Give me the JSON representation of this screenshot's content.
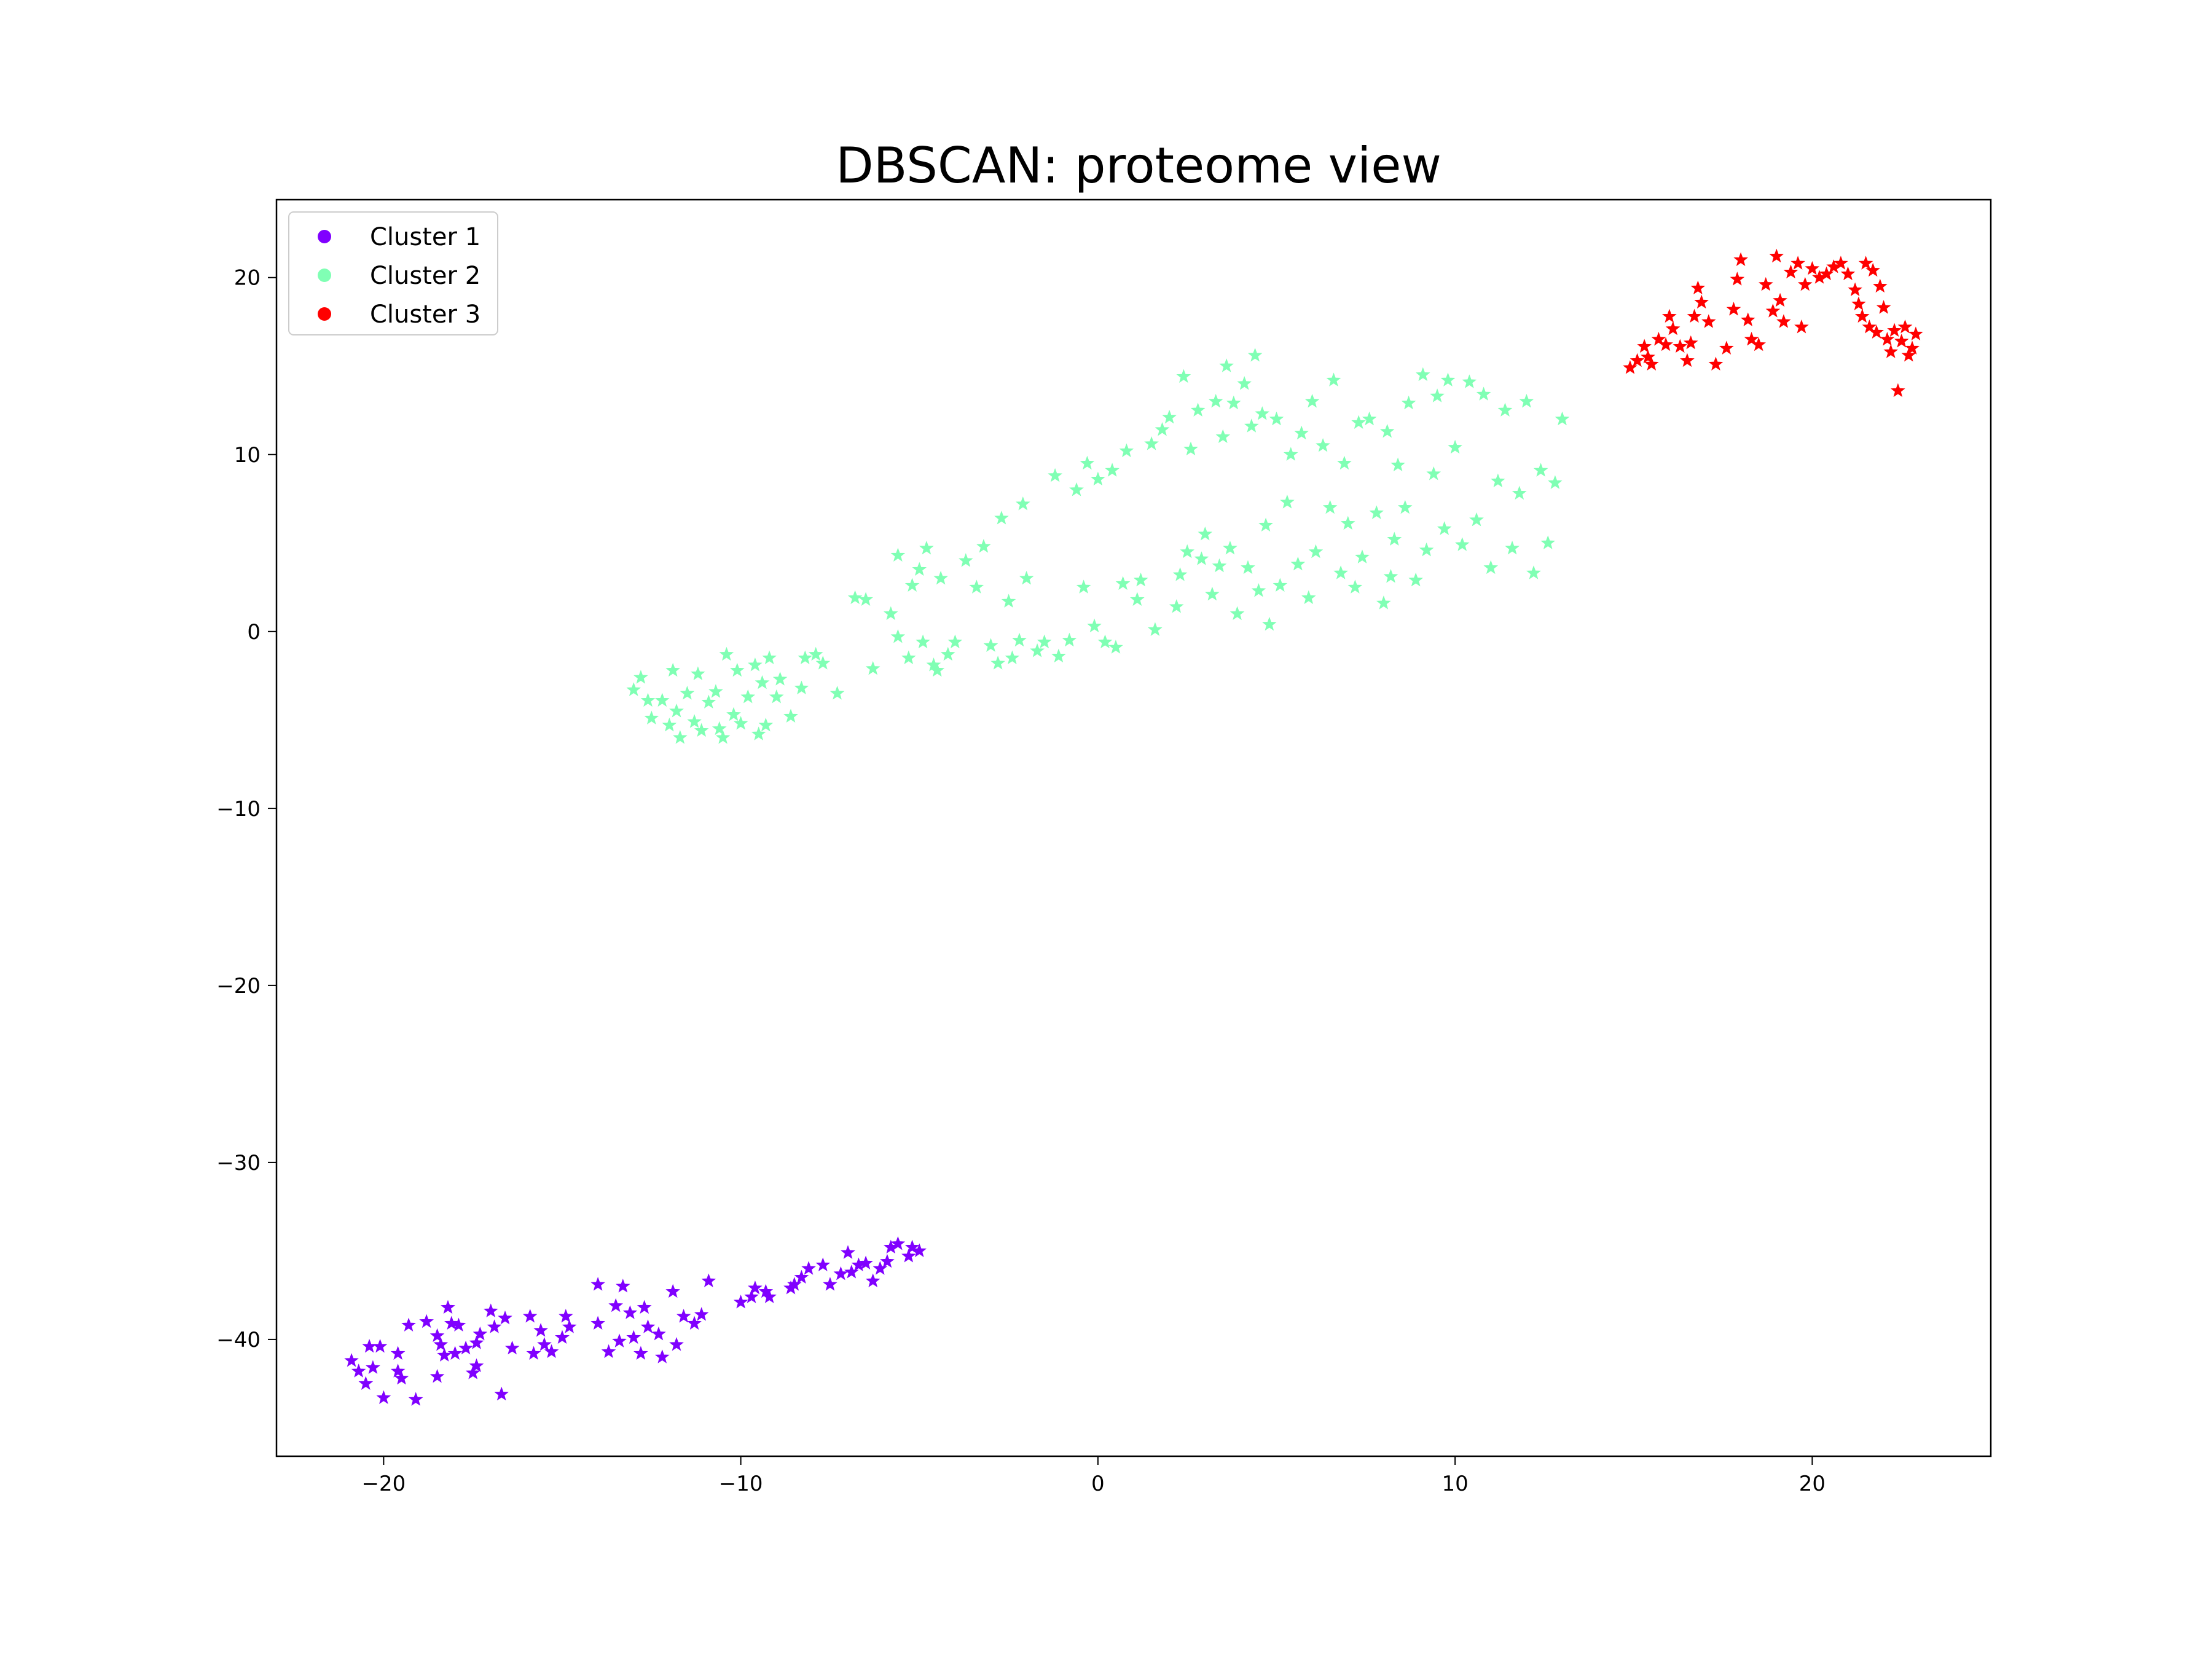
{
  "chart_data": {
    "type": "scatter",
    "title": "DBSCAN: proteome view",
    "xlabel": "",
    "ylabel": "",
    "xlim": [
      -23,
      25
    ],
    "ylim": [
      -46.6,
      24.4
    ],
    "x_ticks": [
      -20,
      -10,
      0,
      10,
      20
    ],
    "y_ticks": [
      -40,
      -30,
      -20,
      -10,
      0,
      10,
      20
    ],
    "x_tick_labels": [
      "−20",
      "−10",
      "0",
      "10",
      "20"
    ],
    "y_tick_labels": [
      "−40",
      "−30",
      "−20",
      "−10",
      "0",
      "10",
      "20"
    ],
    "grid": false,
    "legend_position": "upper-left",
    "marker": "star",
    "series": [
      {
        "name": "Cluster 1",
        "color": "#8000ff",
        "points": [
          [
            -20.9,
            -41.2
          ],
          [
            -20.7,
            -41.8
          ],
          [
            -20.5,
            -42.5
          ],
          [
            -20.4,
            -40.4
          ],
          [
            -20.3,
            -41.6
          ],
          [
            -20.1,
            -40.4
          ],
          [
            -20.0,
            -43.3
          ],
          [
            -19.6,
            -40.8
          ],
          [
            -19.6,
            -41.8
          ],
          [
            -19.5,
            -42.2
          ],
          [
            -19.3,
            -39.2
          ],
          [
            -19.1,
            -43.4
          ],
          [
            -18.8,
            -39.0
          ],
          [
            -18.5,
            -39.8
          ],
          [
            -18.5,
            -42.1
          ],
          [
            -18.4,
            -40.3
          ],
          [
            -18.3,
            -40.9
          ],
          [
            -18.2,
            -38.2
          ],
          [
            -18.1,
            -39.1
          ],
          [
            -18.0,
            -40.8
          ],
          [
            -17.9,
            -39.2
          ],
          [
            -17.7,
            -40.5
          ],
          [
            -17.5,
            -41.9
          ],
          [
            -17.4,
            -40.2
          ],
          [
            -17.4,
            -41.5
          ],
          [
            -17.3,
            -39.7
          ],
          [
            -17.0,
            -38.4
          ],
          [
            -16.9,
            -39.3
          ],
          [
            -16.7,
            -43.1
          ],
          [
            -16.6,
            -38.8
          ],
          [
            -16.4,
            -40.5
          ],
          [
            -15.9,
            -38.7
          ],
          [
            -15.5,
            -40.3
          ],
          [
            -15.0,
            -39.9
          ],
          [
            -15.8,
            -40.8
          ],
          [
            -15.6,
            -39.5
          ],
          [
            -15.3,
            -40.7
          ],
          [
            -14.9,
            -38.7
          ],
          [
            -14.8,
            -39.3
          ],
          [
            -14.0,
            -36.9
          ],
          [
            -14.0,
            -39.1
          ],
          [
            -13.7,
            -40.7
          ],
          [
            -13.5,
            -38.1
          ],
          [
            -13.4,
            -40.1
          ],
          [
            -13.3,
            -37.0
          ],
          [
            -13.1,
            -38.5
          ],
          [
            -13.0,
            -39.9
          ],
          [
            -12.8,
            -40.8
          ],
          [
            -12.7,
            -38.2
          ],
          [
            -12.6,
            -39.3
          ],
          [
            -12.3,
            -39.7
          ],
          [
            -12.2,
            -41.0
          ],
          [
            -11.9,
            -37.3
          ],
          [
            -11.8,
            -40.3
          ],
          [
            -11.6,
            -38.7
          ],
          [
            -11.3,
            -39.1
          ],
          [
            -11.1,
            -38.6
          ],
          [
            -10.9,
            -36.7
          ],
          [
            -10.0,
            -37.9
          ],
          [
            -9.7,
            -37.6
          ],
          [
            -9.6,
            -37.1
          ],
          [
            -9.3,
            -37.3
          ],
          [
            -9.2,
            -37.6
          ],
          [
            -8.6,
            -37.1
          ],
          [
            -8.5,
            -36.9
          ],
          [
            -8.3,
            -36.5
          ],
          [
            -8.1,
            -36.0
          ],
          [
            -7.7,
            -35.8
          ],
          [
            -7.5,
            -36.9
          ],
          [
            -7.2,
            -36.3
          ],
          [
            -7.0,
            -35.1
          ],
          [
            -6.9,
            -36.2
          ],
          [
            -6.7,
            -35.8
          ],
          [
            -6.5,
            -35.7
          ],
          [
            -6.3,
            -36.7
          ],
          [
            -6.1,
            -36.0
          ],
          [
            -5.9,
            -35.6
          ],
          [
            -5.8,
            -34.8
          ],
          [
            -5.6,
            -34.6
          ],
          [
            -5.3,
            -35.3
          ],
          [
            -5.2,
            -34.8
          ],
          [
            -5.0,
            -35.0
          ]
        ]
      },
      {
        "name": "Cluster 2",
        "color": "#80ffb4",
        "points": [
          [
            -13.0,
            -3.3
          ],
          [
            -12.8,
            -2.6
          ],
          [
            -12.6,
            -3.9
          ],
          [
            -12.5,
            -4.9
          ],
          [
            -12.2,
            -3.9
          ],
          [
            -12.0,
            -5.3
          ],
          [
            -11.9,
            -2.2
          ],
          [
            -11.8,
            -4.5
          ],
          [
            -11.7,
            -6.0
          ],
          [
            -11.5,
            -3.5
          ],
          [
            -11.3,
            -5.1
          ],
          [
            -11.2,
            -2.4
          ],
          [
            -11.1,
            -5.6
          ],
          [
            -10.9,
            -4.0
          ],
          [
            -10.7,
            -3.4
          ],
          [
            -10.6,
            -5.5
          ],
          [
            -10.5,
            -6.0
          ],
          [
            -10.4,
            -1.3
          ],
          [
            -10.2,
            -4.7
          ],
          [
            -10.1,
            -2.2
          ],
          [
            -10.0,
            -5.2
          ],
          [
            -9.8,
            -3.7
          ],
          [
            -9.6,
            -1.9
          ],
          [
            -9.5,
            -5.8
          ],
          [
            -9.4,
            -2.9
          ],
          [
            -9.3,
            -5.3
          ],
          [
            -9.2,
            -1.5
          ],
          [
            -9.0,
            -3.7
          ],
          [
            -8.9,
            -2.7
          ],
          [
            -8.6,
            -4.8
          ],
          [
            -8.3,
            -3.2
          ],
          [
            -8.2,
            -1.5
          ],
          [
            -7.9,
            -1.3
          ],
          [
            -7.7,
            -1.8
          ],
          [
            -7.3,
            -3.5
          ],
          [
            -6.8,
            1.9
          ],
          [
            -6.5,
            1.8
          ],
          [
            -6.3,
            -2.1
          ],
          [
            -5.8,
            1.0
          ],
          [
            -5.6,
            4.3
          ],
          [
            -5.6,
            -0.3
          ],
          [
            -5.3,
            -1.5
          ],
          [
            -5.2,
            2.6
          ],
          [
            -5.0,
            3.5
          ],
          [
            -4.9,
            -0.6
          ],
          [
            -4.8,
            4.7
          ],
          [
            -4.6,
            -1.9
          ],
          [
            -4.5,
            -2.2
          ],
          [
            -4.4,
            3.0
          ],
          [
            -4.2,
            -1.3
          ],
          [
            -4.0,
            -0.6
          ],
          [
            -3.7,
            4.0
          ],
          [
            -3.4,
            2.5
          ],
          [
            -3.2,
            4.8
          ],
          [
            -3.0,
            -0.8
          ],
          [
            -2.8,
            -1.8
          ],
          [
            -2.7,
            6.4
          ],
          [
            -2.5,
            1.7
          ],
          [
            -2.4,
            -1.5
          ],
          [
            -2.2,
            -0.5
          ],
          [
            -2.1,
            7.2
          ],
          [
            -2.0,
            3.0
          ],
          [
            -1.7,
            -1.1
          ],
          [
            -1.5,
            -0.6
          ],
          [
            -1.2,
            8.8
          ],
          [
            -1.1,
            -1.4
          ],
          [
            -0.8,
            -0.5
          ],
          [
            -0.6,
            8.0
          ],
          [
            -0.4,
            2.5
          ],
          [
            -0.3,
            9.5
          ],
          [
            -0.1,
            0.3
          ],
          [
            0.0,
            8.6
          ],
          [
            0.2,
            -0.6
          ],
          [
            0.4,
            9.1
          ],
          [
            0.5,
            -0.9
          ],
          [
            0.7,
            2.7
          ],
          [
            0.8,
            10.2
          ],
          [
            1.1,
            1.8
          ],
          [
            1.2,
            2.9
          ],
          [
            1.5,
            10.6
          ],
          [
            1.6,
            0.1
          ],
          [
            1.8,
            11.4
          ],
          [
            2.0,
            12.1
          ],
          [
            2.2,
            1.4
          ],
          [
            2.3,
            3.2
          ],
          [
            2.4,
            14.4
          ],
          [
            2.5,
            4.5
          ],
          [
            2.6,
            10.3
          ],
          [
            2.8,
            12.5
          ],
          [
            2.9,
            4.1
          ],
          [
            3.0,
            5.5
          ],
          [
            3.2,
            2.1
          ],
          [
            3.3,
            13.0
          ],
          [
            3.4,
            3.7
          ],
          [
            3.5,
            11.0
          ],
          [
            3.6,
            15.0
          ],
          [
            3.7,
            4.7
          ],
          [
            3.8,
            12.9
          ],
          [
            3.9,
            1.0
          ],
          [
            4.1,
            14.0
          ],
          [
            4.2,
            3.6
          ],
          [
            4.3,
            11.6
          ],
          [
            4.4,
            15.6
          ],
          [
            4.5,
            2.3
          ],
          [
            4.6,
            12.3
          ],
          [
            4.7,
            6.0
          ],
          [
            4.8,
            0.4
          ],
          [
            5.0,
            12.0
          ],
          [
            5.1,
            2.6
          ],
          [
            5.3,
            7.3
          ],
          [
            5.4,
            10.0
          ],
          [
            5.6,
            3.8
          ],
          [
            5.7,
            11.2
          ],
          [
            5.9,
            1.9
          ],
          [
            6.0,
            13.0
          ],
          [
            6.1,
            4.5
          ],
          [
            6.3,
            10.5
          ],
          [
            6.5,
            7.0
          ],
          [
            6.6,
            14.2
          ],
          [
            6.8,
            3.3
          ],
          [
            6.9,
            9.5
          ],
          [
            7.0,
            6.1
          ],
          [
            7.2,
            2.5
          ],
          [
            7.3,
            11.8
          ],
          [
            7.4,
            4.2
          ],
          [
            7.6,
            12.0
          ],
          [
            7.8,
            6.7
          ],
          [
            8.0,
            1.6
          ],
          [
            8.1,
            11.3
          ],
          [
            8.2,
            3.1
          ],
          [
            8.3,
            5.2
          ],
          [
            8.4,
            9.4
          ],
          [
            8.6,
            7.0
          ],
          [
            8.7,
            12.9
          ],
          [
            8.9,
            2.9
          ],
          [
            9.1,
            14.5
          ],
          [
            9.2,
            4.6
          ],
          [
            9.4,
            8.9
          ],
          [
            9.5,
            13.3
          ],
          [
            9.7,
            5.8
          ],
          [
            9.8,
            14.2
          ],
          [
            10.0,
            10.4
          ],
          [
            10.2,
            4.9
          ],
          [
            10.4,
            14.1
          ],
          [
            10.6,
            6.3
          ],
          [
            10.8,
            13.4
          ],
          [
            11.0,
            3.6
          ],
          [
            11.2,
            8.5
          ],
          [
            11.4,
            12.5
          ],
          [
            11.6,
            4.7
          ],
          [
            11.8,
            7.8
          ],
          [
            12.0,
            13.0
          ],
          [
            12.2,
            3.3
          ],
          [
            12.4,
            9.1
          ],
          [
            12.6,
            5.0
          ],
          [
            12.8,
            8.4
          ],
          [
            13.0,
            12.0
          ]
        ]
      },
      {
        "name": "Cluster 3",
        "color": "#ff0000",
        "points": [
          [
            14.9,
            14.9
          ],
          [
            15.1,
            15.3
          ],
          [
            15.3,
            16.1
          ],
          [
            15.4,
            15.5
          ],
          [
            15.5,
            15.1
          ],
          [
            15.7,
            16.5
          ],
          [
            15.9,
            16.2
          ],
          [
            16.0,
            17.8
          ],
          [
            16.1,
            17.1
          ],
          [
            16.3,
            16.1
          ],
          [
            16.5,
            15.3
          ],
          [
            16.6,
            16.3
          ],
          [
            16.7,
            17.8
          ],
          [
            16.8,
            19.4
          ],
          [
            16.9,
            18.6
          ],
          [
            17.1,
            17.5
          ],
          [
            17.3,
            15.1
          ],
          [
            17.6,
            16.0
          ],
          [
            17.8,
            18.2
          ],
          [
            17.9,
            19.9
          ],
          [
            18.0,
            21.0
          ],
          [
            18.2,
            17.6
          ],
          [
            18.3,
            16.5
          ],
          [
            18.5,
            16.2
          ],
          [
            18.7,
            19.6
          ],
          [
            18.9,
            18.1
          ],
          [
            19.0,
            21.2
          ],
          [
            19.1,
            18.7
          ],
          [
            19.2,
            17.5
          ],
          [
            19.4,
            20.3
          ],
          [
            19.6,
            20.8
          ],
          [
            19.7,
            17.2
          ],
          [
            19.8,
            19.6
          ],
          [
            20.0,
            20.5
          ],
          [
            20.2,
            20.0
          ],
          [
            20.4,
            20.2
          ],
          [
            20.6,
            20.6
          ],
          [
            20.8,
            20.8
          ],
          [
            21.0,
            20.2
          ],
          [
            21.2,
            19.3
          ],
          [
            21.3,
            18.5
          ],
          [
            21.4,
            17.8
          ],
          [
            21.5,
            20.8
          ],
          [
            21.6,
            17.2
          ],
          [
            21.7,
            20.4
          ],
          [
            21.8,
            16.9
          ],
          [
            21.9,
            19.5
          ],
          [
            22.0,
            18.3
          ],
          [
            22.1,
            16.5
          ],
          [
            22.2,
            15.8
          ],
          [
            22.3,
            17.0
          ],
          [
            22.4,
            13.6
          ],
          [
            22.5,
            16.4
          ],
          [
            22.6,
            17.2
          ],
          [
            22.7,
            15.6
          ],
          [
            22.8,
            16.0
          ],
          [
            22.9,
            16.8
          ]
        ]
      }
    ]
  }
}
